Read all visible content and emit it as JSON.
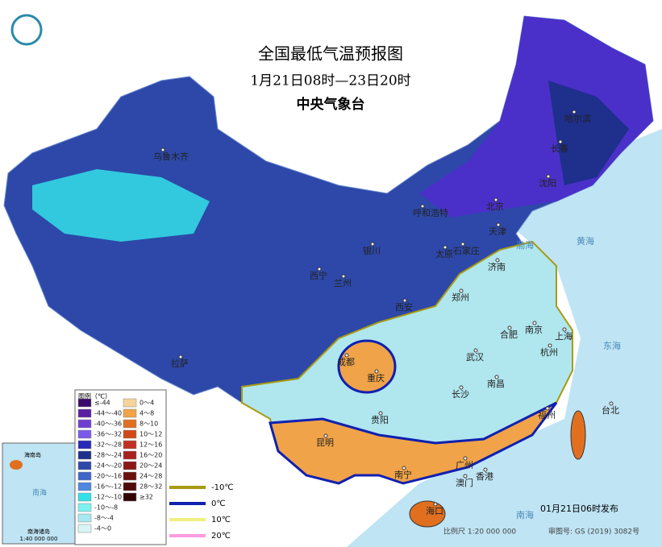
{
  "header": {
    "title": "全国最低气温预报图",
    "date_range": "1月21日08时—23日20时",
    "agency": "中央气象台"
  },
  "cities": [
    "乌鲁木齐",
    "哈尔滨",
    "长春",
    "沈阳",
    "呼和浩特",
    "北京",
    "天津",
    "石家庄",
    "太原",
    "济南",
    "银川",
    "西宁",
    "兰州",
    "郑州",
    "西安",
    "合肥",
    "南京",
    "上海",
    "杭州",
    "武汉",
    "成都",
    "重庆",
    "南昌",
    "长沙",
    "拉萨",
    "贵阳",
    "福州",
    "台北",
    "昆明",
    "南宁",
    "广州",
    "澳门",
    "香港",
    "海口"
  ],
  "seas": [
    "渤海",
    "黄海",
    "东海",
    "南海"
  ],
  "legend": {
    "title": "图例（℃）",
    "entries": [
      {
        "label": "≤-44",
        "color": "#3a0a6b"
      },
      {
        "label": "-44～-40",
        "color": "#5a1fa0"
      },
      {
        "label": "-40～-36",
        "color": "#6f3fd0"
      },
      {
        "label": "-36～-32",
        "color": "#7a5ae8"
      },
      {
        "label": "-32～-28",
        "color": "#2a2ab8"
      },
      {
        "label": "-28～-24",
        "color": "#1e2f8c"
      },
      {
        "label": "-24～-20",
        "color": "#2d48a8"
      },
      {
        "label": "-20～-16",
        "color": "#3f66c8"
      },
      {
        "label": "-16～-12",
        "color": "#4f86de"
      },
      {
        "label": "-12～-10",
        "color": "#34e0e8"
      },
      {
        "label": "-10～-8",
        "color": "#7ef0f0"
      },
      {
        "label": "-8～-4",
        "color": "#a8e8f0"
      },
      {
        "label": "-4～0",
        "color": "#d8f4f4"
      },
      {
        "label": "0～4",
        "color": "#f5d49a"
      },
      {
        "label": "4～8",
        "color": "#f0a348"
      },
      {
        "label": "8～10",
        "color": "#e07020"
      },
      {
        "label": "10～12",
        "color": "#d04818"
      },
      {
        "label": "12～16",
        "color": "#c03020"
      },
      {
        "label": "16～20",
        "color": "#a82020"
      },
      {
        "label": "20～24",
        "color": "#8a1818"
      },
      {
        "label": "24～28",
        "color": "#6a1010"
      },
      {
        "label": "28～32",
        "color": "#500a0a"
      },
      {
        "label": "≥32",
        "color": "#300505"
      }
    ],
    "isotherms": [
      {
        "label": "-10℃",
        "color": "#a89a10"
      },
      {
        "label": "0℃",
        "color": "#1020b0"
      },
      {
        "label": "10℃",
        "color": "#f0f080"
      },
      {
        "label": "20℃",
        "color": "#ff9ae0"
      }
    ]
  },
  "inset": {
    "title": "南海诸岛",
    "island": "海南岛",
    "sea": "南海",
    "scale": "1:40 000 000"
  },
  "footer": {
    "issued": "01月21日06时发布",
    "scale": "比例尺 1:20 000 000",
    "approval": "审图号: GS (2019) 3082号"
  }
}
